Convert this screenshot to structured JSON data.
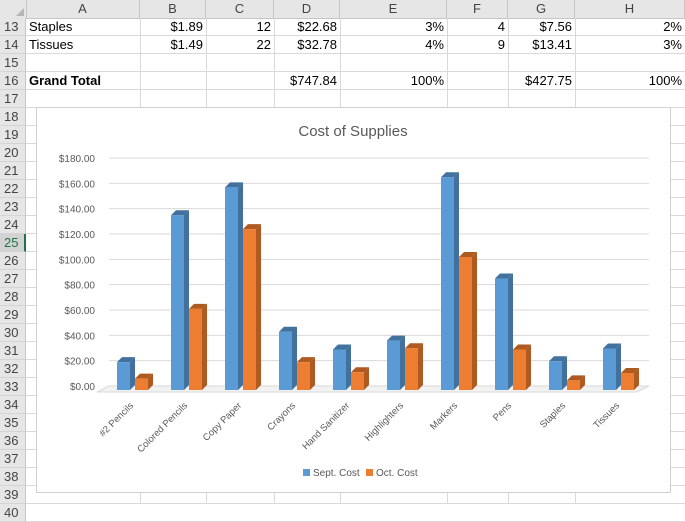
{
  "columns": [
    "A",
    "B",
    "C",
    "D",
    "E",
    "F",
    "G",
    "H"
  ],
  "row_numbers": [
    "13",
    "14",
    "15",
    "16",
    "17",
    "18",
    "19",
    "20",
    "21",
    "22",
    "23",
    "24",
    "25",
    "26",
    "27",
    "28",
    "29",
    "30",
    "31",
    "32",
    "33",
    "34",
    "35",
    "36",
    "37",
    "38",
    "39",
    "40"
  ],
  "selected_row": "25",
  "rows": {
    "r13": {
      "a": "Staples",
      "b": "$1.89",
      "c": "12",
      "d": "$22.68",
      "e": "3%",
      "f": "4",
      "g": "$7.56",
      "h": "2%"
    },
    "r14": {
      "a": "Tissues",
      "b": "$1.49",
      "c": "22",
      "d": "$32.78",
      "e": "4%",
      "f": "9",
      "g": "$13.41",
      "h": "3%"
    },
    "r16": {
      "a": "Grand Total",
      "d": "$747.84",
      "e": "100%",
      "g": "$427.75",
      "h": "100%"
    }
  },
  "chart_data": {
    "type": "bar",
    "title": "Cost of Supplies",
    "categories": [
      "#2 Pencils",
      "Colored Pencils",
      "Copy Paper",
      "Crayons",
      "Hand Sanitizer",
      "Highlighters",
      "Markers",
      "Pens",
      "Staples",
      "Tissues"
    ],
    "series": [
      {
        "name": "Sept. Cost",
        "color": "#5b9bd5",
        "values": [
          22,
          138,
          160,
          46,
          32,
          39,
          168,
          88,
          22.68,
          32.78
        ]
      },
      {
        "name": "Oct. Cost",
        "color": "#ed7d31",
        "values": [
          9,
          64,
          127,
          22,
          14,
          33,
          105,
          32,
          7.56,
          13.41
        ]
      }
    ],
    "yticks": [
      "$0.00",
      "$20.00",
      "$40.00",
      "$60.00",
      "$80.00",
      "$100.00",
      "$120.00",
      "$140.00",
      "$160.00",
      "$180.00"
    ],
    "ylim": [
      0,
      180
    ],
    "grid": true,
    "legend": "bottom"
  }
}
